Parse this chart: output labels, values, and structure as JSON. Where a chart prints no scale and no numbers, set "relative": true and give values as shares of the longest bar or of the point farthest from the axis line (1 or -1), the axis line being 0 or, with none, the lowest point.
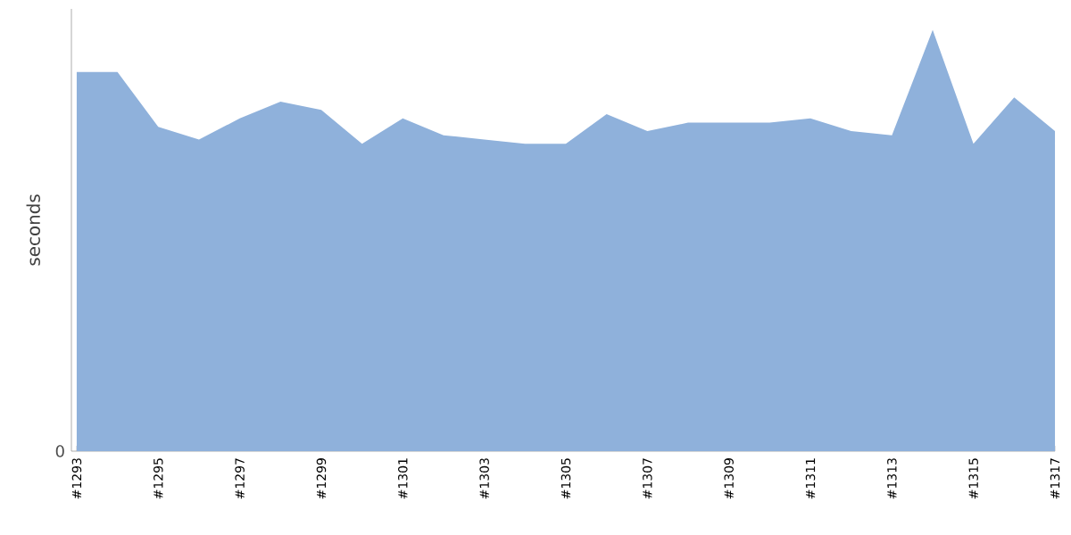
{
  "chart_data": {
    "type": "area",
    "ylabel": "seconds",
    "relative": true,
    "color": "#8fb1db",
    "annotations": [
      "0"
    ],
    "categories": [
      "#1293",
      null,
      "#1295",
      null,
      "#1297",
      null,
      "#1299",
      null,
      "#1301",
      null,
      "#1303",
      null,
      "#1305",
      null,
      "#1307",
      null,
      "#1309",
      null,
      "#1311",
      null,
      "#1313",
      null,
      "#1315",
      null,
      "#1317"
    ],
    "values": [
      0.9,
      0.9,
      0.77,
      0.74,
      0.79,
      0.83,
      0.81,
      0.73,
      0.79,
      0.75,
      0.74,
      0.73,
      0.73,
      0.8,
      0.76,
      0.78,
      0.78,
      0.78,
      0.79,
      0.76,
      0.75,
      1,
      0.73,
      0.84,
      0.76
    ]
  }
}
